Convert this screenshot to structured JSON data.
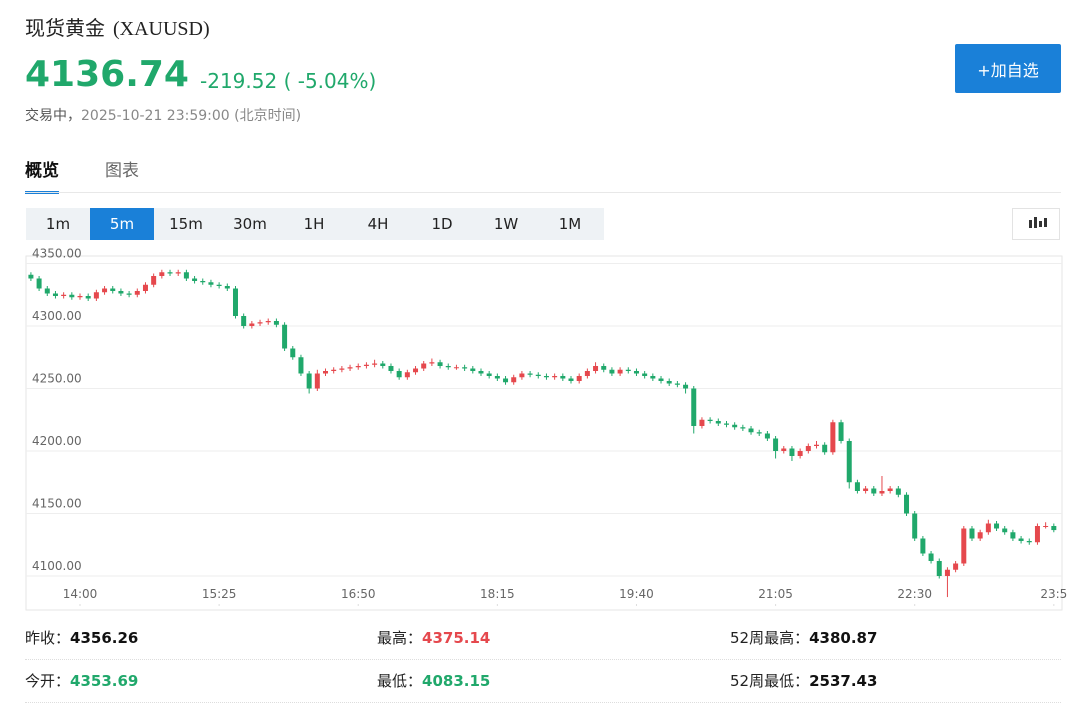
{
  "header": {
    "title": "现货黄金",
    "symbol": "(XAUUSD)",
    "price": 4136.74,
    "change": -219.52,
    "change_pct": "( -5.04%)",
    "status": "交易中，",
    "time": "2025-10-21 23:59:00",
    "timezone": "(北京时间)",
    "button": "+加自选"
  },
  "tabs": [
    "概览",
    "图表"
  ],
  "intervals": [
    "1m",
    "5m",
    "15m",
    "30m",
    "1H",
    "4H",
    "1D",
    "1W",
    "1M"
  ],
  "selected_interval": 1,
  "chart_data": {
    "type": "candlestick",
    "up_color": "#e5484d",
    "down_color": "#20a86b",
    "grid": true,
    "ylim": [
      4076,
      4356
    ],
    "yticks": [
      {
        "value": 4100,
        "label": "4100.00"
      },
      {
        "value": 4150,
        "label": "4150.00"
      },
      {
        "value": 4200,
        "label": "4200.00"
      },
      {
        "value": 4250,
        "label": "4250.00"
      },
      {
        "value": 4300,
        "label": "4300.00"
      },
      {
        "value": 4350,
        "label": "4350.00"
      }
    ],
    "xlim": [
      -0.6,
      126
    ],
    "xticks": [
      {
        "value": 6,
        "label": "14:00"
      },
      {
        "value": 23,
        "label": "15:25"
      },
      {
        "value": 40,
        "label": "16:50"
      },
      {
        "value": 57,
        "label": "18:15"
      },
      {
        "value": 74,
        "label": "19:40"
      },
      {
        "value": 91,
        "label": "21:05"
      },
      {
        "value": 108,
        "label": "22:30"
      },
      {
        "value": 125,
        "label": "23:5"
      }
    ],
    "candles": [
      [
        4341,
        4343,
        4336,
        4338
      ],
      [
        4338,
        4340,
        4328,
        4330
      ],
      [
        4330,
        4332,
        4324,
        4326
      ],
      [
        4326,
        4328,
        4322,
        4324
      ],
      [
        4324,
        4327,
        4322,
        4325
      ],
      [
        4325,
        4327,
        4321,
        4323
      ],
      [
        4323,
        4326,
        4321,
        4324
      ],
      [
        4324,
        4326,
        4320,
        4322
      ],
      [
        4322,
        4329,
        4320,
        4327
      ],
      [
        4327,
        4332,
        4325,
        4330
      ],
      [
        4330,
        4332,
        4326,
        4328
      ],
      [
        4328,
        4330,
        4324,
        4326
      ],
      [
        4326,
        4328,
        4323,
        4325
      ],
      [
        4325,
        4330,
        4323,
        4328
      ],
      [
        4328,
        4335,
        4326,
        4333
      ],
      [
        4333,
        4342,
        4331,
        4340
      ],
      [
        4340,
        4345,
        4338,
        4343
      ],
      [
        4343,
        4345,
        4340,
        4342
      ],
      [
        4342,
        4345,
        4340,
        4343
      ],
      [
        4343,
        4345,
        4336,
        4338
      ],
      [
        4338,
        4340,
        4334,
        4336
      ],
      [
        4336,
        4338,
        4333,
        4335
      ],
      [
        4335,
        4337,
        4331,
        4333
      ],
      [
        4333,
        4335,
        4330,
        4332
      ],
      [
        4332,
        4334,
        4328,
        4330
      ],
      [
        4330,
        4332,
        4306,
        4308
      ],
      [
        4308,
        4310,
        4298,
        4300
      ],
      [
        4300,
        4304,
        4298,
        4302
      ],
      [
        4302,
        4305,
        4300,
        4303
      ],
      [
        4303,
        4306,
        4301,
        4304
      ],
      [
        4304,
        4306,
        4299,
        4301
      ],
      [
        4301,
        4303,
        4280,
        4282
      ],
      [
        4282,
        4284,
        4273,
        4275
      ],
      [
        4275,
        4277,
        4260,
        4262
      ],
      [
        4262,
        4264,
        4246,
        4250
      ],
      [
        4250,
        4265,
        4248,
        4262
      ],
      [
        4262,
        4266,
        4260,
        4264
      ],
      [
        4264,
        4267,
        4262,
        4265
      ],
      [
        4265,
        4268,
        4263,
        4266
      ],
      [
        4266,
        4269,
        4264,
        4267
      ],
      [
        4267,
        4270,
        4265,
        4268
      ],
      [
        4268,
        4271,
        4266,
        4269
      ],
      [
        4269,
        4273,
        4267,
        4270
      ],
      [
        4270,
        4272,
        4266,
        4268
      ],
      [
        4268,
        4270,
        4262,
        4264
      ],
      [
        4264,
        4266,
        4257,
        4259
      ],
      [
        4259,
        4265,
        4257,
        4263
      ],
      [
        4263,
        4268,
        4261,
        4266
      ],
      [
        4266,
        4272,
        4264,
        4270
      ],
      [
        4270,
        4274,
        4268,
        4271
      ],
      [
        4271,
        4273,
        4266,
        4268
      ],
      [
        4268,
        4270,
        4265,
        4267
      ],
      [
        4267,
        4269,
        4265,
        4267
      ],
      [
        4267,
        4269,
        4264,
        4266
      ],
      [
        4266,
        4268,
        4262,
        4264
      ],
      [
        4264,
        4266,
        4260,
        4262
      ],
      [
        4262,
        4264,
        4258,
        4260
      ],
      [
        4260,
        4262,
        4256,
        4258
      ],
      [
        4258,
        4260,
        4253,
        4255
      ],
      [
        4255,
        4261,
        4253,
        4259
      ],
      [
        4259,
        4264,
        4257,
        4262
      ],
      [
        4262,
        4264,
        4259,
        4261
      ],
      [
        4261,
        4263,
        4258,
        4260
      ],
      [
        4260,
        4262,
        4257,
        4259
      ],
      [
        4259,
        4262,
        4257,
        4260
      ],
      [
        4260,
        4262,
        4256,
        4258
      ],
      [
        4258,
        4260,
        4254,
        4256
      ],
      [
        4256,
        4262,
        4254,
        4260
      ],
      [
        4260,
        4266,
        4258,
        4264
      ],
      [
        4264,
        4271,
        4262,
        4268
      ],
      [
        4268,
        4270,
        4263,
        4265
      ],
      [
        4265,
        4267,
        4260,
        4262
      ],
      [
        4262,
        4267,
        4260,
        4265
      ],
      [
        4265,
        4267,
        4262,
        4264
      ],
      [
        4264,
        4266,
        4260,
        4262
      ],
      [
        4262,
        4264,
        4258,
        4260
      ],
      [
        4260,
        4262,
        4256,
        4258
      ],
      [
        4258,
        4260,
        4254,
        4256
      ],
      [
        4256,
        4258,
        4252,
        4254
      ],
      [
        4254,
        4256,
        4251,
        4253
      ],
      [
        4253,
        4255,
        4246,
        4250
      ],
      [
        4250,
        4252,
        4214,
        4220
      ],
      [
        4220,
        4227,
        4218,
        4225
      ],
      [
        4225,
        4227,
        4222,
        4224
      ],
      [
        4224,
        4226,
        4220,
        4222
      ],
      [
        4222,
        4224,
        4219,
        4221
      ],
      [
        4221,
        4223,
        4217,
        4219
      ],
      [
        4219,
        4221,
        4216,
        4218
      ],
      [
        4218,
        4220,
        4213,
        4215
      ],
      [
        4215,
        4217,
        4212,
        4214
      ],
      [
        4214,
        4216,
        4208,
        4210
      ],
      [
        4210,
        4212,
        4194,
        4200
      ],
      [
        4200,
        4204,
        4198,
        4202
      ],
      [
        4202,
        4204,
        4192,
        4196
      ],
      [
        4196,
        4202,
        4194,
        4200
      ],
      [
        4200,
        4206,
        4198,
        4204
      ],
      [
        4204,
        4208,
        4202,
        4205
      ],
      [
        4205,
        4207,
        4197,
        4199
      ],
      [
        4199,
        4225,
        4197,
        4223
      ],
      [
        4223,
        4225,
        4206,
        4208
      ],
      [
        4208,
        4210,
        4170,
        4175
      ],
      [
        4175,
        4177,
        4166,
        4168
      ],
      [
        4168,
        4172,
        4166,
        4170
      ],
      [
        4170,
        4172,
        4164,
        4166
      ],
      [
        4166,
        4180,
        4164,
        4168
      ],
      [
        4168,
        4172,
        4166,
        4170
      ],
      [
        4170,
        4172,
        4163,
        4165
      ],
      [
        4165,
        4167,
        4148,
        4150
      ],
      [
        4150,
        4152,
        4128,
        4130
      ],
      [
        4130,
        4132,
        4116,
        4118
      ],
      [
        4118,
        4120,
        4110,
        4112
      ],
      [
        4112,
        4114,
        4098,
        4100
      ],
      [
        4100,
        4107,
        4083.15,
        4105
      ],
      [
        4105,
        4112,
        4103,
        4110
      ],
      [
        4110,
        4140,
        4108,
        4138
      ],
      [
        4138,
        4140,
        4128,
        4130
      ],
      [
        4130,
        4137,
        4128,
        4135
      ],
      [
        4135,
        4145,
        4133,
        4142
      ],
      [
        4142,
        4144,
        4136,
        4138
      ],
      [
        4138,
        4140,
        4133,
        4135
      ],
      [
        4135,
        4137,
        4128,
        4130
      ],
      [
        4130,
        4132,
        4126,
        4128
      ],
      [
        4128,
        4130,
        4125,
        4127
      ],
      [
        4127,
        4142,
        4125,
        4140
      ],
      [
        4140,
        4143,
        4138,
        4140
      ],
      [
        4140,
        4142,
        4135,
        4136.74
      ]
    ]
  },
  "stats": [
    [
      {
        "label": "昨收：",
        "value": 4356.26,
        "color": "#111"
      },
      {
        "label": "最高：",
        "value": 4375.14,
        "color": "#e5484d"
      },
      {
        "label": "52周最高：",
        "value": 4380.87,
        "color": "#111"
      }
    ],
    [
      {
        "label": "今开：",
        "value": 4353.69,
        "color": "#20a86b"
      },
      {
        "label": "最低：",
        "value": 4083.15,
        "color": "#20a86b"
      },
      {
        "label": "52周最低：",
        "value": 2537.43,
        "color": "#111"
      }
    ]
  ]
}
